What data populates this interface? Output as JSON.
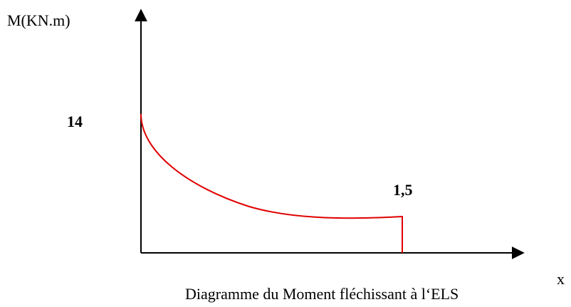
{
  "diagram": {
    "y_axis_label": "M(KN.m)",
    "x_axis_label": "x",
    "start_label": "14",
    "end_label": "1,5",
    "caption": "Diagramme du Moment fléchissant à l‘ELS"
  }
}
